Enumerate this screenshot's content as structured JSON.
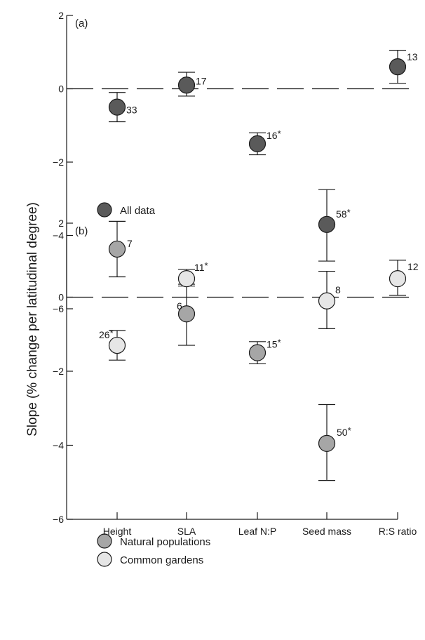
{
  "y_axis_label": "Slope (% change per latitudinal degree)",
  "categories": [
    "Height",
    "SLA",
    "Leaf N:P",
    "Seed mass",
    "R:S ratio"
  ],
  "colors": {
    "all_data": "#5a5a5a",
    "natural": "#a6a6a6",
    "garden": "#e6e6e6",
    "line": "#1a1a1a"
  },
  "chart_data": [
    {
      "type": "scatter",
      "panel_label": "(a)",
      "ylim": [
        -6,
        2
      ],
      "yticks": [
        "2",
        "0",
        "−2",
        "−4",
        "−6"
      ],
      "ytick_values": [
        2,
        0,
        -2,
        -4,
        -6
      ],
      "categories": [
        "Height",
        "SLA",
        "Leaf N:P",
        "Seed mass",
        "R:S ratio"
      ],
      "legend": [
        {
          "label": "All data",
          "color": "#5a5a5a"
        }
      ],
      "series": [
        {
          "name": "All data",
          "color": "#5a5a5a",
          "points": [
            {
              "category": "Height",
              "y": -0.5,
              "lo": -0.9,
              "hi": -0.1,
              "n": "33",
              "star": ""
            },
            {
              "category": "SLA",
              "y": 0.1,
              "lo": -0.2,
              "hi": 0.45,
              "n": "17",
              "star": ""
            },
            {
              "category": "Leaf N:P",
              "y": -1.5,
              "lo": -1.8,
              "hi": -1.2,
              "n": "16",
              "star": "*"
            },
            {
              "category": "Seed mass",
              "y": -3.7,
              "lo": -4.7,
              "hi": -2.75,
              "n": "58",
              "star": "*"
            },
            {
              "category": "R:S ratio",
              "y": 0.6,
              "lo": 0.15,
              "hi": 1.05,
              "n": "13",
              "star": ""
            }
          ]
        }
      ]
    },
    {
      "type": "scatter",
      "panel_label": "(b)",
      "ylim": [
        -6,
        2
      ],
      "yticks": [
        "2",
        "0",
        "−2",
        "−4",
        "−6"
      ],
      "ytick_values": [
        2,
        0,
        -2,
        -4,
        -6
      ],
      "categories": [
        "Height",
        "SLA",
        "Leaf N:P",
        "Seed mass",
        "R:S ratio"
      ],
      "legend": [
        {
          "label": "Natural populations",
          "color": "#a6a6a6"
        },
        {
          "label": "Common gardens",
          "color": "#e6e6e6"
        }
      ],
      "series": [
        {
          "name": "Natural populations",
          "color": "#a6a6a6",
          "points": [
            {
              "category": "Height",
              "y": 1.3,
              "lo": 0.55,
              "hi": 2.05,
              "n": "7",
              "star": ""
            },
            {
              "category": "SLA",
              "y": -0.45,
              "lo": -1.3,
              "hi": 0.35,
              "n": "6",
              "star": ""
            },
            {
              "category": "Leaf N:P",
              "y": -1.5,
              "lo": -1.8,
              "hi": -1.2,
              "n": "15",
              "star": "*"
            },
            {
              "category": "Seed mass",
              "y": -3.95,
              "lo": -4.95,
              "hi": -2.9,
              "n": "50",
              "star": "*"
            }
          ]
        },
        {
          "name": "Common gardens",
          "color": "#e6e6e6",
          "points": [
            {
              "category": "Height",
              "y": -1.3,
              "lo": -1.7,
              "hi": -0.9,
              "n": "26",
              "star": "*"
            },
            {
              "category": "SLA",
              "y": 0.5,
              "lo": 0.3,
              "hi": 0.75,
              "n": "11",
              "star": "*"
            },
            {
              "category": "Seed mass",
              "y": -0.1,
              "lo": -0.85,
              "hi": 0.7,
              "n": "8",
              "star": ""
            },
            {
              "category": "R:S ratio",
              "y": 0.5,
              "lo": 0.05,
              "hi": 1.0,
              "n": "12",
              "star": ""
            }
          ]
        }
      ]
    }
  ]
}
